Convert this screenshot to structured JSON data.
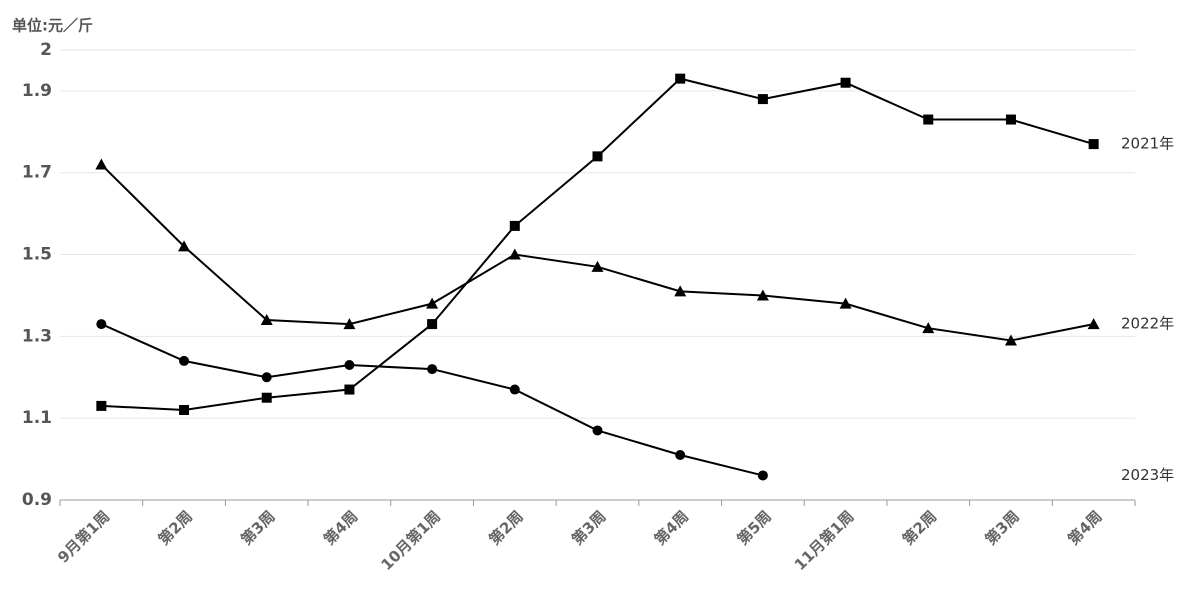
{
  "chart_data": {
    "type": "line",
    "unit_label": "单位:元／斤",
    "categories": [
      "9月第1周",
      "第2周",
      "第3周",
      "第4周",
      "10月第1周",
      "第2周",
      "第3周",
      "第4周",
      "第5周",
      "11月第1周",
      "第2周",
      "第3周",
      "第4周"
    ],
    "series": [
      {
        "name": "2021年",
        "color": "#000000",
        "marker": "square",
        "values": [
          1.13,
          1.12,
          1.15,
          1.17,
          1.33,
          1.57,
          1.74,
          1.93,
          1.88,
          1.92,
          1.83,
          1.83,
          1.77
        ]
      },
      {
        "name": "2022年",
        "color": "#000000",
        "marker": "triangle",
        "values": [
          1.72,
          1.52,
          1.34,
          1.33,
          1.38,
          1.5,
          1.47,
          1.41,
          1.4,
          1.38,
          1.32,
          1.29,
          1.33
        ]
      },
      {
        "name": "2023年",
        "color": "#000000",
        "marker": "circle",
        "values": [
          1.33,
          1.24,
          1.2,
          1.23,
          1.22,
          1.17,
          1.07,
          1.01,
          0.96,
          null,
          null,
          null,
          null
        ]
      }
    ],
    "ylim": [
      0.9,
      2
    ],
    "yticks": [
      0.9,
      1.1,
      1.3,
      1.5,
      1.7,
      1.9,
      2
    ],
    "grid": true
  }
}
